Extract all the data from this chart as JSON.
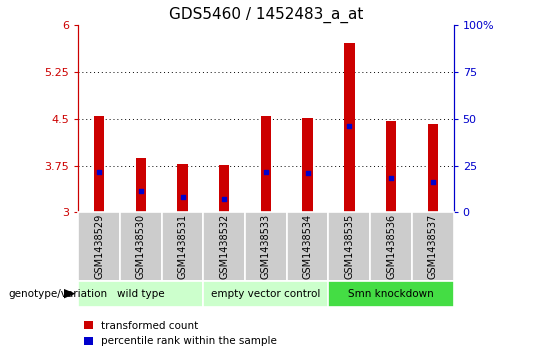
{
  "title": "GDS5460 / 1452483_a_at",
  "samples": [
    "GSM1438529",
    "GSM1438530",
    "GSM1438531",
    "GSM1438532",
    "GSM1438533",
    "GSM1438534",
    "GSM1438535",
    "GSM1438536",
    "GSM1438537"
  ],
  "red_values": [
    4.55,
    3.88,
    3.78,
    3.76,
    4.55,
    4.52,
    5.72,
    4.47,
    4.42
  ],
  "blue_values": [
    3.65,
    3.35,
    3.25,
    3.22,
    3.65,
    3.63,
    4.38,
    3.55,
    3.48
  ],
  "ymin": 3.0,
  "ymax": 6.0,
  "yticks_left": [
    3.0,
    3.75,
    4.5,
    5.25,
    6.0
  ],
  "ytick_labels_left": [
    "3",
    "3.75",
    "4.5",
    "5.25",
    "6"
  ],
  "yticks_right_vals": [
    0,
    25,
    50,
    75,
    100
  ],
  "ytick_labels_right": [
    "0",
    "25",
    "50",
    "75",
    "100%"
  ],
  "grid_values": [
    3.75,
    4.5,
    5.25
  ],
  "groups": [
    {
      "label": "wild type",
      "start": 0,
      "end": 2,
      "color": "#ccffcc"
    },
    {
      "label": "empty vector control",
      "start": 3,
      "end": 5,
      "color": "#ccffcc"
    },
    {
      "label": "Smn knockdown",
      "start": 6,
      "end": 8,
      "color": "#44dd44"
    }
  ],
  "bar_color": "#cc0000",
  "dot_color": "#0000cc",
  "bar_width": 0.25,
  "dot_size": 12,
  "plot_bg_color": "#ffffff",
  "axis_color_left": "#cc0000",
  "axis_color_right": "#0000cc",
  "legend_red_label": "transformed count",
  "legend_blue_label": "percentile rank within the sample",
  "genotype_label": "genotype/variation",
  "sample_row_bg": "#cccccc",
  "title_fontsize": 11
}
